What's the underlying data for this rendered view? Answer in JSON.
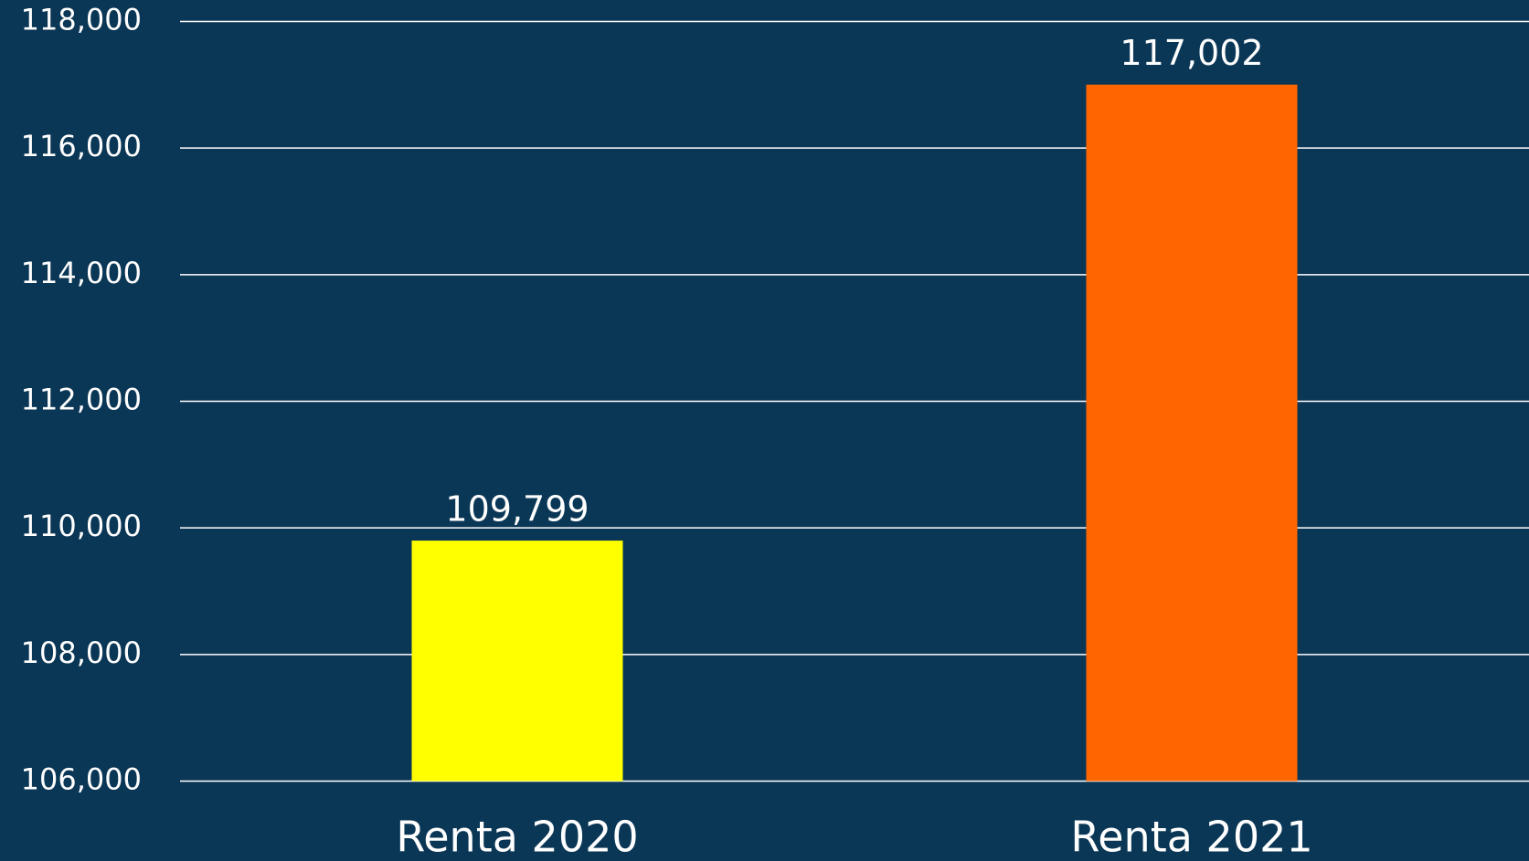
{
  "chart_data": {
    "type": "bar",
    "categories": [
      "Renta 2020",
      "Renta 2021"
    ],
    "values": [
      109799,
      117002
    ],
    "value_labels": [
      "109,799",
      "117,002"
    ],
    "colors": [
      "#ffff00",
      "#ff6600"
    ],
    "ylim": [
      106000,
      118000
    ],
    "yticks": [
      {
        "value": 106000,
        "label": "106,000"
      },
      {
        "value": 108000,
        "label": "108,000"
      },
      {
        "value": 110000,
        "label": "110,000"
      },
      {
        "value": 112000,
        "label": "112,000"
      },
      {
        "value": 114000,
        "label": "114,000"
      },
      {
        "value": 116000,
        "label": "116,000"
      },
      {
        "value": 118000,
        "label": "118,000"
      }
    ],
    "grid": true
  }
}
